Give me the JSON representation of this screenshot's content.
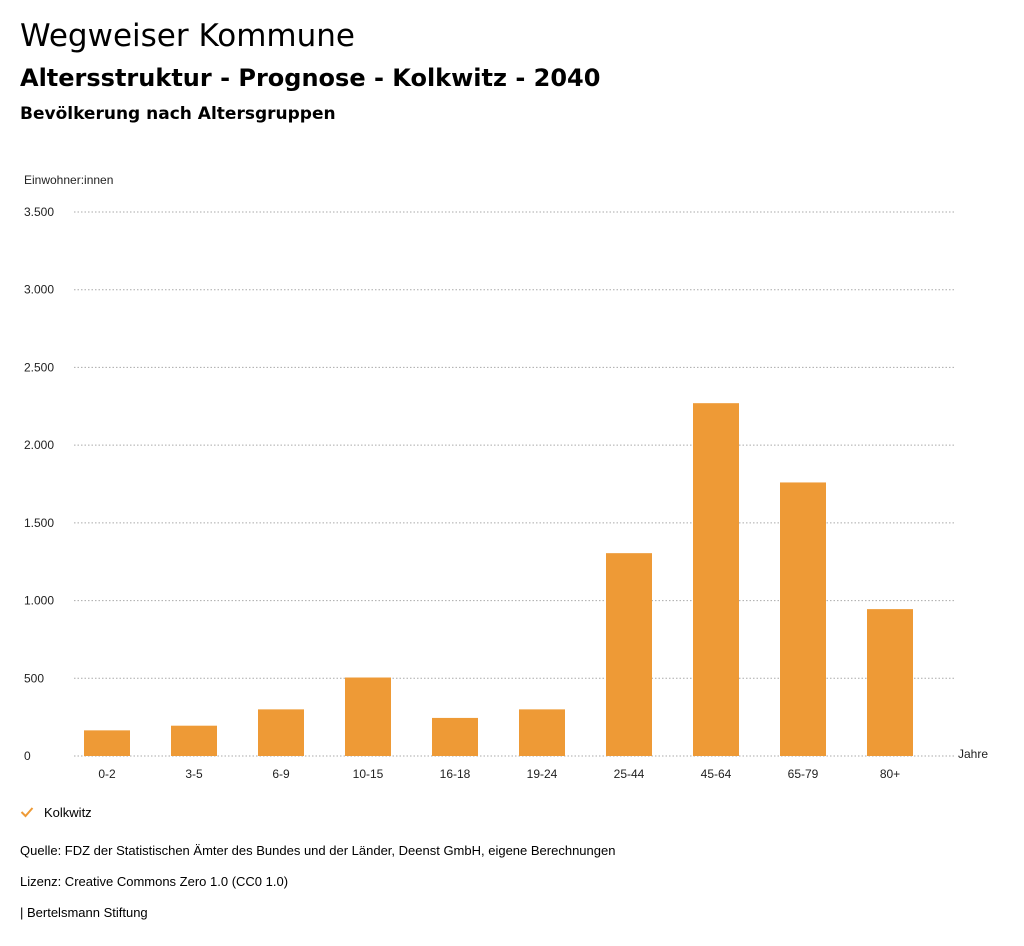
{
  "header": {
    "title": "Wegweiser Kommune",
    "subtitle": "Altersstruktur - Prognose - Kolkwitz - 2040",
    "section": "Bevölkerung nach Altersgruppen"
  },
  "colors": {
    "bar": "#EE9A36",
    "grid": "#aaaaaa",
    "text": "#222222"
  },
  "chart_data": {
    "type": "bar",
    "title": "Bevölkerung nach Altersgruppen",
    "ylabel": "Einwohner:innen",
    "xlabel": "Jahre",
    "categories": [
      "0-2",
      "3-5",
      "6-9",
      "10-15",
      "16-18",
      "19-24",
      "25-44",
      "45-64",
      "65-79",
      "80+"
    ],
    "series": [
      {
        "name": "Kolkwitz",
        "values": [
          165,
          195,
          300,
          505,
          245,
          300,
          1305,
          2270,
          1760,
          945
        ]
      }
    ],
    "ylim": [
      0,
      3500
    ],
    "yticks": [
      0,
      500,
      1000,
      1500,
      2000,
      2500,
      3000,
      3500
    ],
    "ytick_labels": [
      "0",
      "500",
      "1.000",
      "1.500",
      "2.000",
      "2.500",
      "3.000",
      "3.500"
    ],
    "grid": true,
    "legend_position": "bottom-left"
  },
  "legend": {
    "label": "Kolkwitz",
    "icon": "checkmark-icon"
  },
  "footer": {
    "source": "Quelle: FDZ der Statistischen Ämter des Bundes und der Länder, Deenst GmbH, eigene Berechnungen",
    "license": "Lizenz: Creative Commons Zero 1.0 (CC0 1.0)",
    "brand": "| Bertelsmann Stiftung"
  }
}
